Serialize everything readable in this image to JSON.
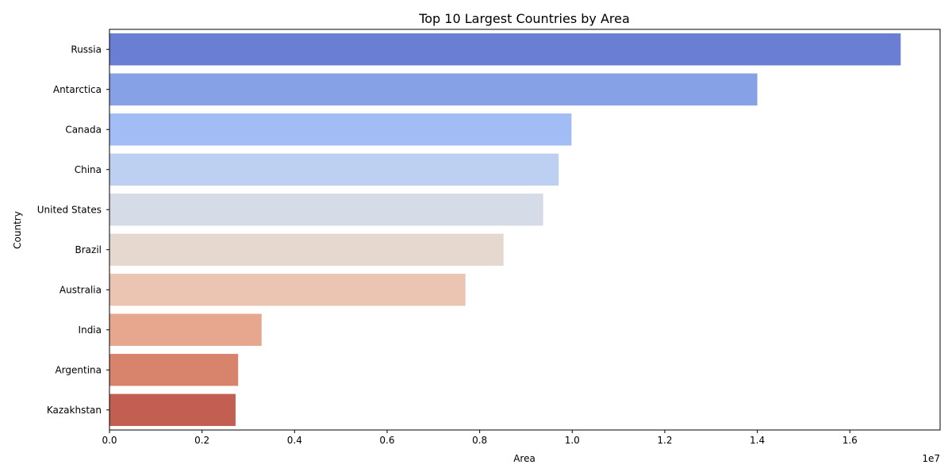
{
  "chart_data": {
    "type": "bar",
    "orientation": "horizontal",
    "title": "Top 10 Largest Countries by Area",
    "xlabel": "Area",
    "ylabel": "Country",
    "x_offset_text": "1e7",
    "categories": [
      "Russia",
      "Antarctica",
      "Canada",
      "China",
      "United States",
      "Brazil",
      "Australia",
      "India",
      "Argentina",
      "Kazakhstan"
    ],
    "values": [
      17098242,
      14000000,
      9984670,
      9706961,
      9372610,
      8515767,
      7692024,
      3287263,
      2780400,
      2724900
    ],
    "xlim": [
      0,
      17950000
    ],
    "xticks": [
      0,
      2000000,
      4000000,
      6000000,
      8000000,
      10000000,
      12000000,
      14000000,
      16000000
    ],
    "xtick_labels": [
      "0.0",
      "0.2",
      "0.4",
      "0.6",
      "0.8",
      "1.0",
      "1.2",
      "1.4",
      "1.6"
    ],
    "grid": false,
    "legend": "none",
    "colors": [
      "#6a7fd3",
      "#86a1e6",
      "#a2bdf6",
      "#bdd0f2",
      "#d5dbe7",
      "#e6d8cf",
      "#ecc4b2",
      "#e6a78e",
      "#d8846d",
      "#c25e52"
    ]
  }
}
